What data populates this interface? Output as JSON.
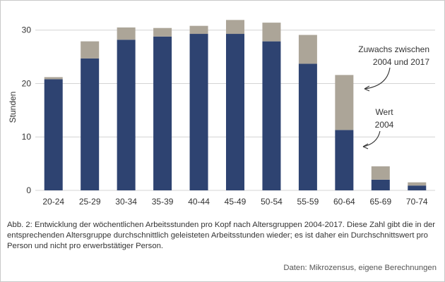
{
  "chart_data": {
    "type": "bar",
    "stacked": true,
    "categories": [
      "20-24",
      "25-29",
      "30-34",
      "35-39",
      "40-44",
      "45-49",
      "50-54",
      "55-59",
      "60-64",
      "65-69",
      "70-74"
    ],
    "series": [
      {
        "name": "Wert 2004",
        "values": [
          20.8,
          24.7,
          28.2,
          28.8,
          29.3,
          29.3,
          27.9,
          23.7,
          11.3,
          2.0,
          0.9
        ]
      },
      {
        "name": "Zuwachs zwischen 2004 und 2017",
        "values": [
          0.4,
          3.2,
          2.3,
          1.6,
          1.5,
          2.6,
          3.5,
          5.4,
          10.3,
          2.5,
          0.6
        ]
      }
    ],
    "ylabel": "Stunden",
    "ylim": [
      0,
      33
    ],
    "yticks": [
      0,
      10,
      20,
      30
    ],
    "grid": true,
    "annotations": {
      "increase_label_line1": "Zuwachs zwischen",
      "increase_label_line2": "2004 und 2017",
      "base_label_line1": "Wert",
      "base_label_line2": "2004"
    }
  },
  "colors": {
    "base": "#2e4371",
    "increase": "#aca598",
    "grid": "#d4d4d4"
  },
  "caption": "Abb. 2: Entwicklung der wöchentlichen Arbeitsstunden pro Kopf nach Altersgruppen 2004-2017. Diese Zahl gibt die in der entsprechenden Altersgruppe durchschnittlich geleisteten Arbeitsstunden wieder; es ist daher ein Durchschnittswert pro Person und nicht pro erwerbstätiger Person.",
  "source": "Daten: Mikrozensus, eigene Berechnungen"
}
